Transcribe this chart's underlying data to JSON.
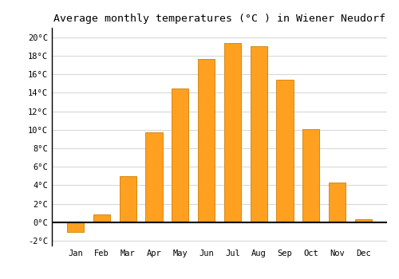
{
  "title": "Average monthly temperatures (°C ) in Wiener Neudorf",
  "months": [
    "Jan",
    "Feb",
    "Mar",
    "Apr",
    "May",
    "Jun",
    "Jul",
    "Aug",
    "Sep",
    "Oct",
    "Nov",
    "Dec"
  ],
  "values": [
    -1.0,
    0.9,
    5.0,
    9.7,
    14.5,
    17.6,
    19.4,
    19.0,
    15.4,
    10.1,
    4.3,
    0.3
  ],
  "bar_color": "#FFA020",
  "bar_edge_color": "#CC8000",
  "background_color": "#FFFFFF",
  "plot_background": "#FFFFFF",
  "ylim": [
    -2.5,
    21.0
  ],
  "yticks": [
    -2,
    0,
    2,
    4,
    6,
    8,
    10,
    12,
    14,
    16,
    18,
    20
  ],
  "title_fontsize": 9.5,
  "tick_fontsize": 7.5,
  "grid_color": "#D8D8D8",
  "zero_line_color": "#000000",
  "left_spine_color": "#000000"
}
